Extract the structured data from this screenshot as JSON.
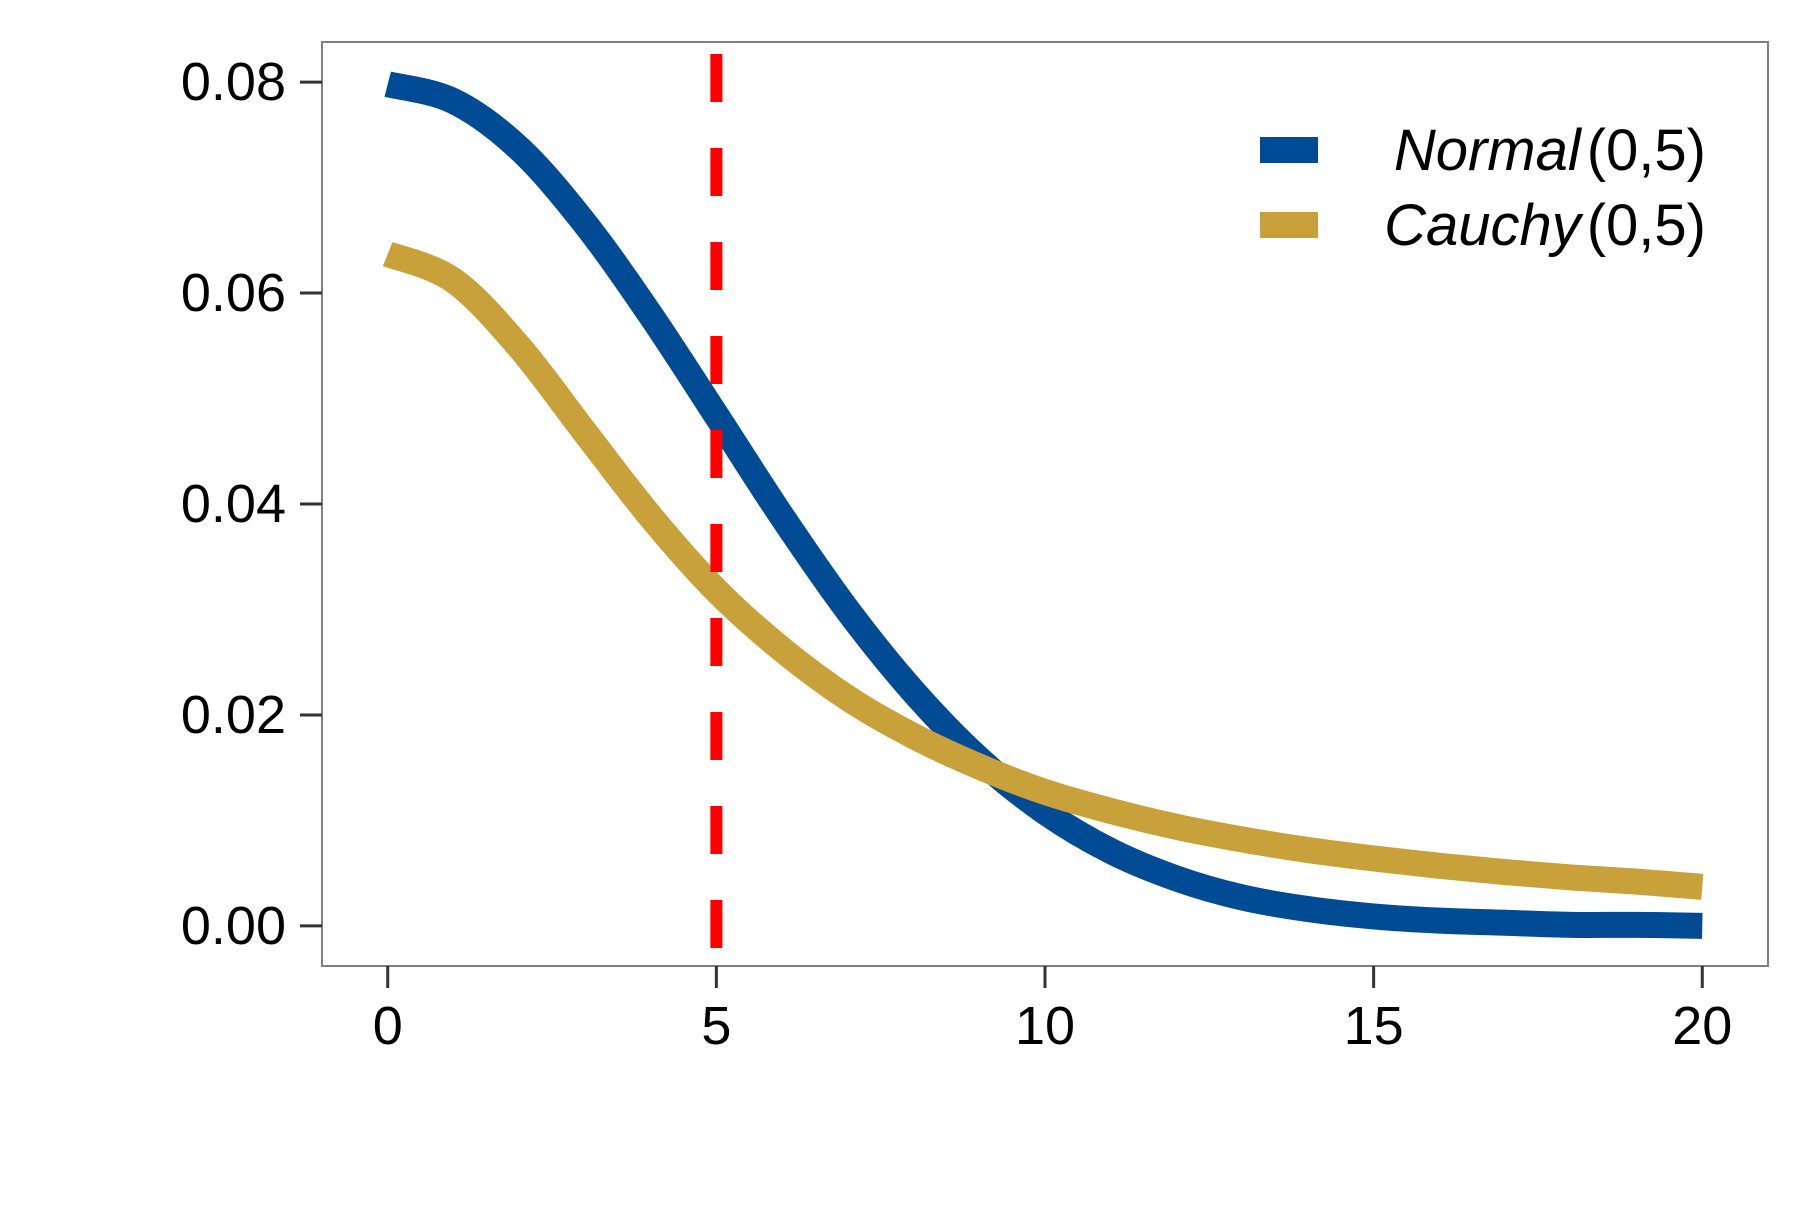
{
  "chart_data": {
    "type": "line",
    "title": "",
    "xlabel": "",
    "ylabel": "",
    "xlim": [
      -1,
      21
    ],
    "ylim": [
      -0.0038,
      0.0838
    ],
    "x_ticks": [
      0,
      5,
      10,
      15,
      20
    ],
    "x_tick_labels": [
      "0",
      "5",
      "10",
      "15",
      "20"
    ],
    "y_ticks": [
      0.0,
      0.02,
      0.04,
      0.06,
      0.08
    ],
    "y_tick_labels": [
      "0.00",
      "0.02",
      "0.04",
      "0.06",
      "0.08"
    ],
    "grid": false,
    "legend_position": "top-right",
    "vline": {
      "x": 5,
      "color": "#ff0000",
      "style": "dashed"
    },
    "series": [
      {
        "name": "Normal",
        "params": "(0,5)",
        "color": "#004B93",
        "x": [
          0,
          1,
          2,
          3,
          4,
          5,
          6,
          7,
          8,
          9,
          10,
          11,
          12,
          13,
          14,
          15,
          16,
          17,
          18,
          19,
          20
        ],
        "values": [
          0.0798,
          0.0782,
          0.0737,
          0.0666,
          0.0579,
          0.0484,
          0.0388,
          0.0299,
          0.0222,
          0.0158,
          0.0108,
          0.0071,
          0.0045,
          0.0027,
          0.0016,
          0.0009,
          0.0005,
          0.0003,
          0.0001,
          0.0001,
          0.0
        ]
      },
      {
        "name": "Cauchy",
        "params": "(0,5)",
        "color": "#C8A13B",
        "x": [
          0,
          1,
          2,
          3,
          4,
          5,
          6,
          7,
          8,
          9,
          10,
          11,
          12,
          13,
          14,
          15,
          16,
          17,
          18,
          19,
          20
        ],
        "values": [
          0.0637,
          0.0612,
          0.0549,
          0.0468,
          0.0388,
          0.0318,
          0.0262,
          0.0216,
          0.018,
          0.0151,
          0.0127,
          0.0109,
          0.0094,
          0.0082,
          0.0072,
          0.0064,
          0.0057,
          0.0051,
          0.0046,
          0.0042,
          0.0037
        ]
      }
    ]
  }
}
